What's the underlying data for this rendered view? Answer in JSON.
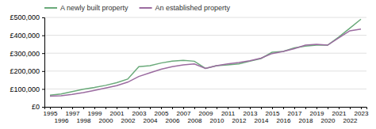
{
  "chart_data": {
    "type": "line",
    "x": [
      1995,
      1996,
      1997,
      1998,
      1999,
      2000,
      2001,
      2002,
      2003,
      2004,
      2005,
      2006,
      2007,
      2008,
      2009,
      2010,
      2011,
      2012,
      2013,
      2014,
      2015,
      2016,
      2017,
      2018,
      2019,
      2020,
      2021,
      2022,
      2023
    ],
    "series": [
      {
        "name": "A newly built property",
        "color": "#6aaa7a",
        "values": [
          65000,
          72000,
          85000,
          98000,
          108000,
          120000,
          135000,
          155000,
          225000,
          230000,
          245000,
          255000,
          260000,
          255000,
          215000,
          230000,
          235000,
          240000,
          255000,
          270000,
          305000,
          310000,
          330000,
          340000,
          345000,
          345000,
          390000,
          440000,
          490000
        ]
      },
      {
        "name": "An established property",
        "color": "#9b6ba0",
        "values": [
          60000,
          62000,
          70000,
          80000,
          92000,
          105000,
          118000,
          138000,
          170000,
          190000,
          210000,
          225000,
          235000,
          240000,
          215000,
          230000,
          240000,
          248000,
          258000,
          272000,
          298000,
          310000,
          325000,
          345000,
          350000,
          345000,
          385000,
          425000,
          435000
        ]
      }
    ],
    "xlim": [
      1994.5,
      2023.5
    ],
    "xticks": [
      1995,
      1996,
      1997,
      1998,
      1999,
      2000,
      2001,
      2002,
      2003,
      2004,
      2005,
      2006,
      2007,
      2008,
      2009,
      2010,
      2011,
      2012,
      2013,
      2014,
      2015,
      2016,
      2017,
      2018,
      2019,
      2020,
      2021,
      2022,
      2023
    ],
    "ylim": [
      0,
      500000
    ],
    "yticks": [
      {
        "value": 0,
        "label": "£0"
      },
      {
        "value": 100000,
        "label": "£100,000"
      },
      {
        "value": 200000,
        "label": "£200,000"
      },
      {
        "value": 300000,
        "label": "£300,000"
      },
      {
        "value": 400000,
        "label": "£400,000"
      },
      {
        "value": 500000,
        "label": "£500,000"
      }
    ],
    "grid": true,
    "legend": "upper left"
  }
}
